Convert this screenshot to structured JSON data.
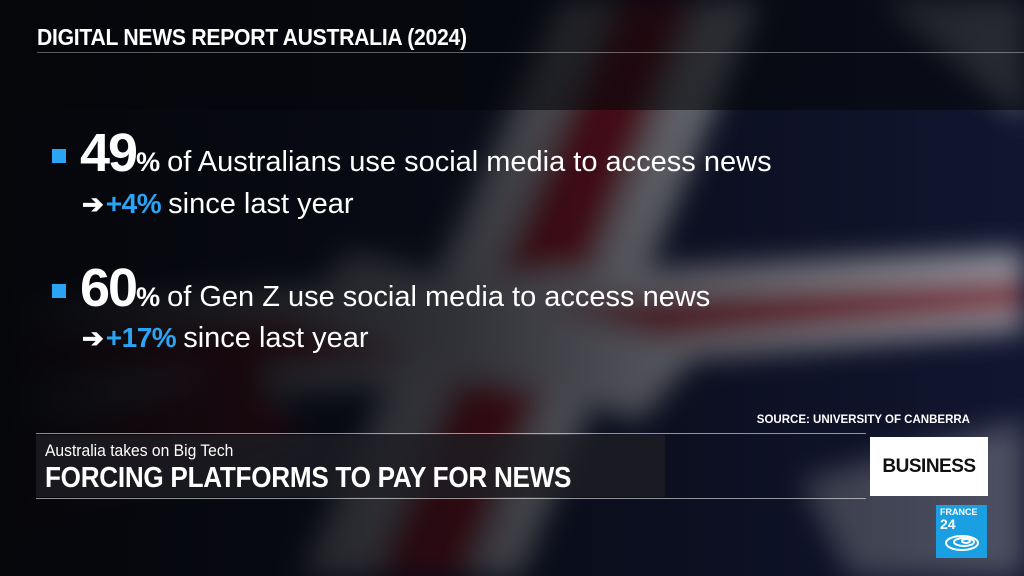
{
  "header": {
    "title": "DIGITAL NEWS REPORT AUSTRALIA (2024)"
  },
  "stats": [
    {
      "value": "49",
      "unit": "%",
      "text": "of Australians use social media to access news",
      "arrow": "➔",
      "change": "+4%",
      "change_text": "since last year"
    },
    {
      "value": "60",
      "unit": "%",
      "text": "of Gen Z use social media to access news",
      "arrow": "➔",
      "change": "+17%",
      "change_text": "since last year"
    }
  ],
  "source": "SOURCE: UNIVERSITY OF CANBERRA",
  "lower_third": {
    "kicker": "Australia takes on Big Tech",
    "headline": "FORCING PLATFORMS TO PAY FOR NEWS"
  },
  "section_badge": "BUSINESS",
  "logo": {
    "line1": "FRANCE",
    "line2": "24"
  },
  "colors": {
    "accent": "#2aa4f4",
    "logo_blue": "#1a9fe3"
  }
}
